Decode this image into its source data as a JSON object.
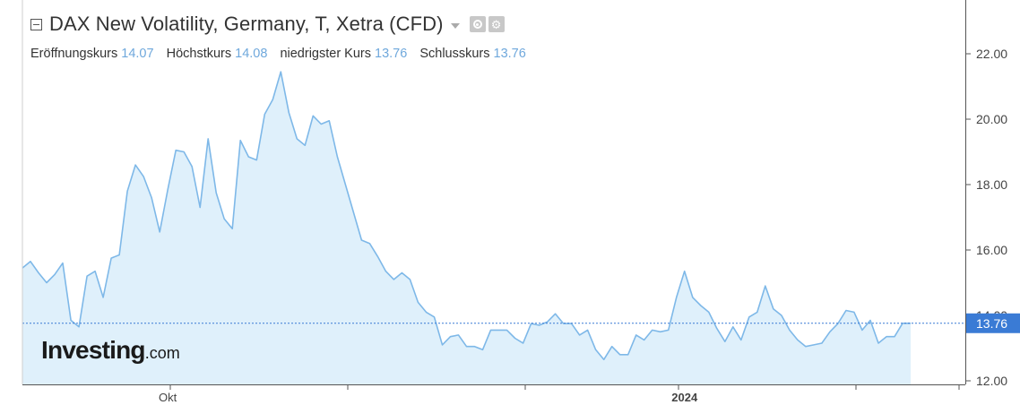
{
  "header": {
    "title": "DAX New Volatility, Germany, T, Xetra (CFD)",
    "open_label": "Eröffnungskurs",
    "open_value": "14.07",
    "high_label": "Höchstkurs",
    "high_value": "14.08",
    "low_label": "niedrigster Kurs",
    "low_value": "13.76",
    "close_label": "Schlusskurs",
    "close_value": "13.76"
  },
  "icons": {
    "collapse": "collapse-icon",
    "dropdown": "chevron-down-icon",
    "visibility": "eye-icon",
    "settings": "gear-icon"
  },
  "logo": {
    "brand": "Investing",
    "suffix": ".com"
  },
  "colors": {
    "line": "#7eb8e8",
    "fill": "#dff0fb",
    "price_tag": "#3a7bd5",
    "axis": "#555555"
  },
  "chart_data": {
    "type": "area",
    "title": "DAX New Volatility, Germany, T, Xetra (CFD)",
    "xlabel": "",
    "ylabel": "",
    "ylim": [
      12,
      23.5
    ],
    "y_ticks": [
      12,
      14,
      16,
      18,
      20,
      22
    ],
    "y_tick_labels": [
      "12.00",
      "14.00",
      "16.00",
      "18.00",
      "20.00",
      "22.00"
    ],
    "x_labels": [
      {
        "label": "Okt",
        "index": 18
      },
      {
        "label": "2024",
        "index": 82
      }
    ],
    "last_value": 13.76,
    "last_value_label": "13.76",
    "grid": false,
    "values": [
      15.45,
      15.65,
      15.3,
      15.0,
      15.25,
      15.6,
      13.85,
      13.65,
      15.2,
      15.35,
      14.55,
      15.75,
      15.85,
      17.8,
      18.6,
      18.25,
      17.6,
      16.55,
      17.85,
      19.05,
      19.0,
      18.55,
      17.3,
      19.4,
      17.75,
      16.95,
      16.65,
      19.35,
      18.85,
      18.75,
      20.15,
      20.6,
      21.45,
      20.2,
      19.4,
      19.2,
      20.1,
      19.85,
      19.95,
      18.85,
      18.0,
      17.15,
      16.3,
      16.2,
      15.8,
      15.35,
      15.1,
      15.3,
      15.1,
      14.4,
      14.1,
      13.95,
      13.1,
      13.35,
      13.4,
      13.05,
      13.05,
      12.95,
      13.55,
      13.55,
      13.55,
      13.3,
      13.15,
      13.75,
      13.7,
      13.8,
      14.05,
      13.75,
      13.75,
      13.4,
      13.55,
      12.95,
      12.65,
      13.05,
      12.8,
      12.8,
      13.4,
      13.25,
      13.55,
      13.5,
      13.55,
      14.55,
      15.35,
      14.55,
      14.3,
      14.1,
      13.6,
      13.2,
      13.65,
      13.25,
      13.95,
      14.1,
      14.9,
      14.2,
      14.0,
      13.55,
      13.25,
      13.05,
      13.1,
      13.15,
      13.5,
      13.75,
      14.15,
      14.1,
      13.55,
      13.85,
      13.15,
      13.35,
      13.35,
      13.76,
      13.76
    ]
  }
}
